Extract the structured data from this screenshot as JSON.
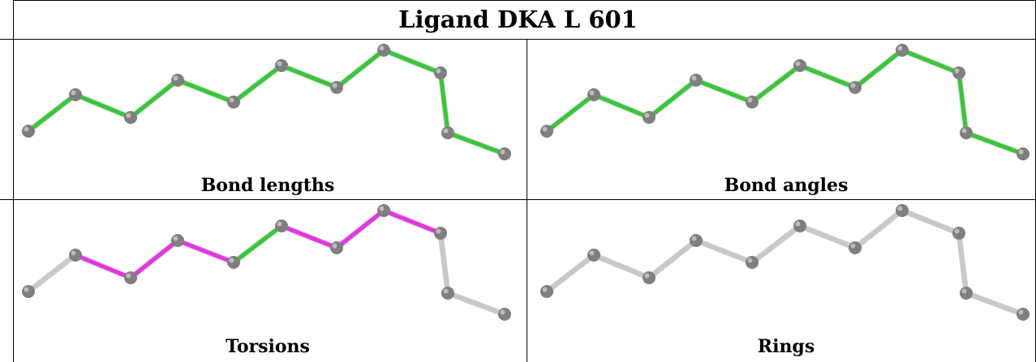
{
  "title": "Ligand DKA L 601",
  "panels": [
    {
      "caption": "Bond lengths",
      "bond_colors": [
        "#35c935",
        "#35c935",
        "#35c935",
        "#35c935",
        "#35c935",
        "#35c935",
        "#35c935",
        "#35c935",
        "#35c935",
        "#35c935"
      ]
    },
    {
      "caption": "Bond angles",
      "bond_colors": [
        "#35c935",
        "#35c935",
        "#35c935",
        "#35c935",
        "#35c935",
        "#35c935",
        "#35c935",
        "#35c935",
        "#35c935",
        "#35c935"
      ]
    },
    {
      "caption": "Torsions",
      "bond_colors": [
        "#c8c8c8",
        "#e633e6",
        "#e633e6",
        "#e633e6",
        "#35c935",
        "#e633e6",
        "#e633e6",
        "#e633e6",
        "#c8c8c8",
        "#c8c8c8"
      ]
    },
    {
      "caption": "Rings",
      "bond_colors": [
        "#c8c8c8",
        "#c8c8c8",
        "#c8c8c8",
        "#c8c8c8",
        "#c8c8c8",
        "#c8c8c8",
        "#c8c8c8",
        "#c8c8c8",
        "#c8c8c8",
        "#c8c8c8"
      ]
    }
  ],
  "colors": {
    "atom": "#7f7f7f",
    "atom_highlight": "#d0d0d0",
    "grid_line": "#000000",
    "background": "#ffffff"
  }
}
